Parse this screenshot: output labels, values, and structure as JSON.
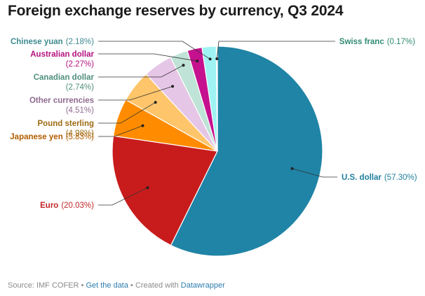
{
  "title": "Foreign exchange reserves by currency, Q3 2024",
  "footer": {
    "source": "Source: IMF COFER",
    "sep1": " • ",
    "get_data": "Get the data",
    "sep2": " • Created with ",
    "tool": "Datawrapper"
  },
  "chart_data": {
    "type": "pie",
    "title": "Foreign exchange reserves by currency, Q3 2024",
    "slices": [
      {
        "label": "U.S. dollar",
        "value": 57.3,
        "value_label": "(57.30%)",
        "color": "#1f84a6",
        "label_color": "#1f7f9e"
      },
      {
        "label": "Euro",
        "value": 20.03,
        "value_label": "(20.03%)",
        "color": "#c81c1c",
        "label_color": "#c0282a"
      },
      {
        "label": "Japanese yen",
        "value": 5.83,
        "value_label": "(5.83%)",
        "color": "#ff8c00",
        "label_color": "#b35d00"
      },
      {
        "label": "Pound sterling",
        "value": 4.98,
        "value_label": "(4.98%)",
        "color": "#ffc56b",
        "label_color": "#9e6a12"
      },
      {
        "label": "Other currencies",
        "value": 4.51,
        "value_label": "(4.51%)",
        "color": "#e6c6e6",
        "label_color": "#8e6a8e"
      },
      {
        "label": "Canadian dollar",
        "value": 2.74,
        "value_label": "(2.74%)",
        "color": "#bfe3d6",
        "label_color": "#4f8f7d"
      },
      {
        "label": "Australian dollar",
        "value": 2.27,
        "value_label": "(2.27%)",
        "color": "#c6118f",
        "label_color": "#b5127f"
      },
      {
        "label": "Chinese yuan",
        "value": 2.18,
        "value_label": "(2.18%)",
        "color": "#9ff3f3",
        "label_color": "#3d8a8f"
      },
      {
        "label": "Swiss franc",
        "value": 0.17,
        "value_label": "(0.17%)",
        "color": "#7ad8c0",
        "label_color": "#2f8a72"
      }
    ]
  }
}
